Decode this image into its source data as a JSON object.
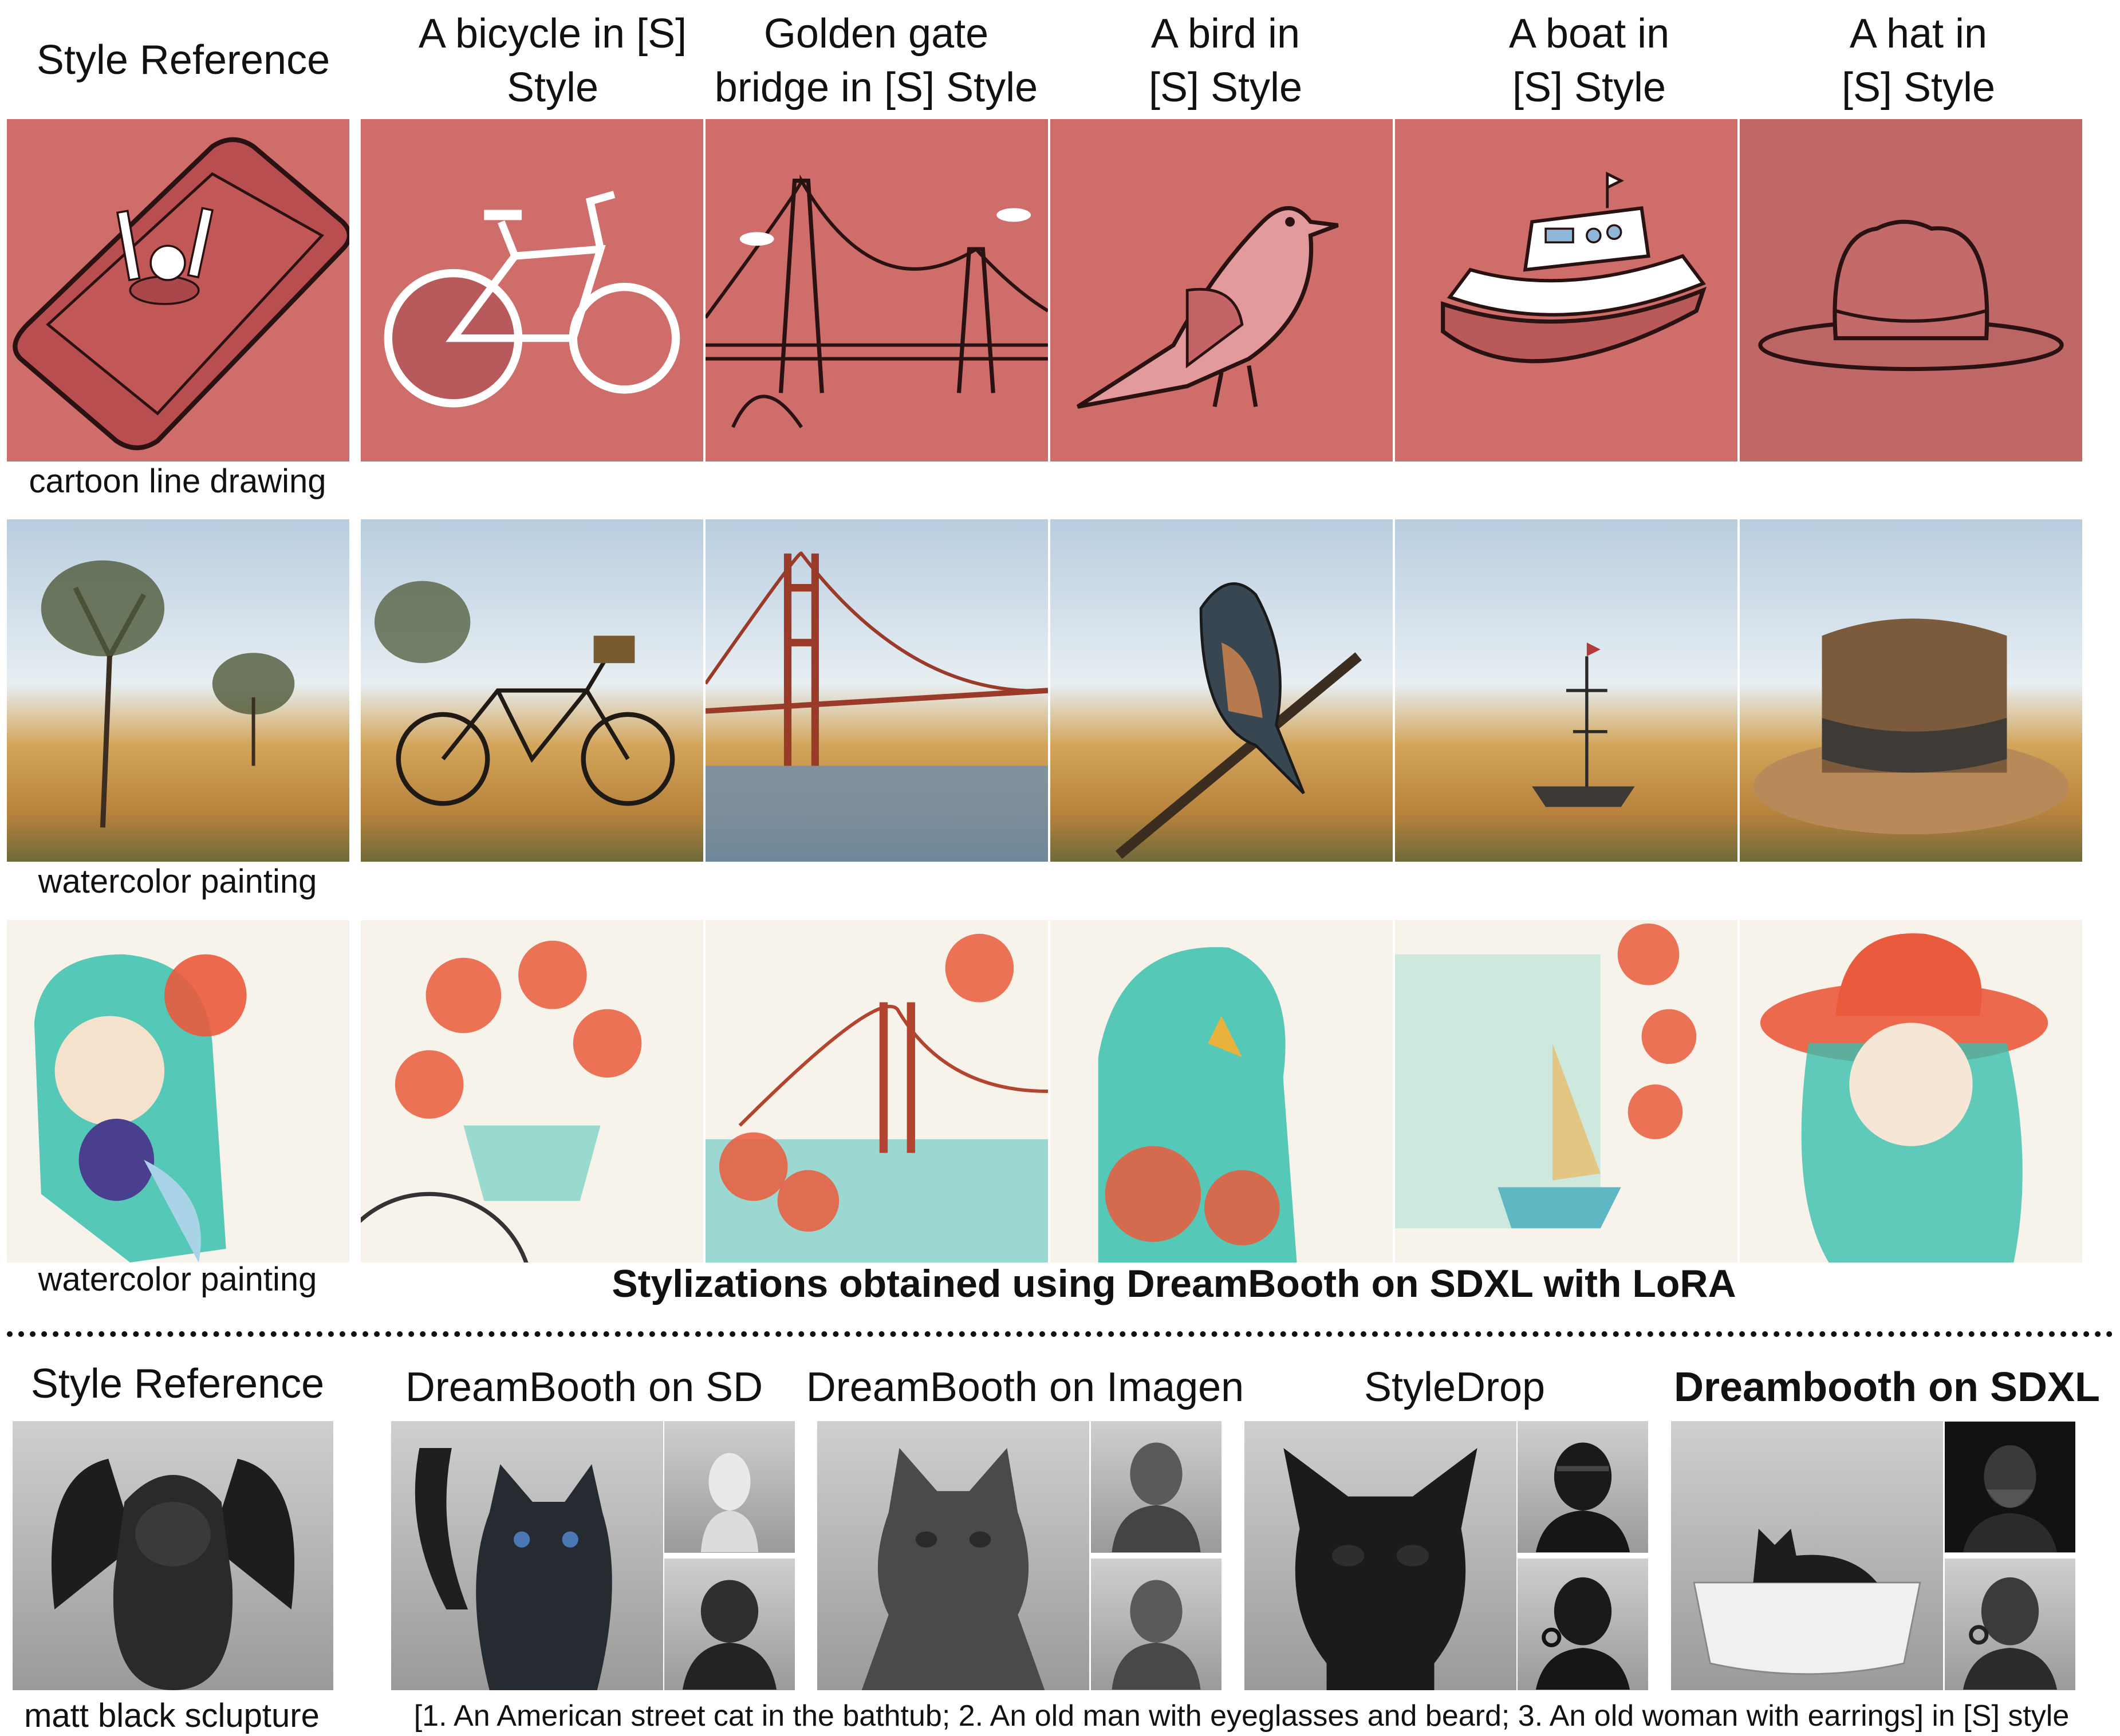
{
  "top": {
    "style_reference_label": "Style Reference",
    "columns": [
      "A bicycle in [S] Style",
      "Golden gate bridge in [S] Style",
      "A bird in [S] Style",
      "A boat in [S] Style",
      "A hat in [S] Style"
    ],
    "column_lines": [
      [
        "A bicycle in [S]",
        "Style"
      ],
      [
        "Golden gate",
        "bridge in [S] Style"
      ],
      [
        "A bird in",
        "[S] Style"
      ],
      [
        "A boat in",
        "[S] Style"
      ],
      [
        "A hat in",
        "[S] Style"
      ]
    ],
    "row_captions": [
      "cartoon line drawing",
      "watercolor painting",
      "watercolor painting"
    ],
    "section_title": "Stylizations obtained using DreamBooth on SDXL with LoRA"
  },
  "bottom": {
    "style_reference_label": "Style Reference",
    "methods": [
      "DreamBooth on SD",
      "DreamBooth on Imagen",
      "StyleDrop",
      "Dreambooth on SDXL"
    ],
    "reference_caption": "matt black sclupture",
    "prompt_caption": "[1. An American street cat in the bathtub; 2. An old man with eyeglasses and beard; 3. An old woman with earrings] in [S] style"
  },
  "colors": {
    "cartoon_bg": "#cf6d6b",
    "watercolor_sky": "#b9cde0",
    "watercolor_ground": "#c8934a",
    "flower_red": "#ea5a3c",
    "teal": "#39bfae",
    "sculpture_black": "#1d1d1d"
  }
}
